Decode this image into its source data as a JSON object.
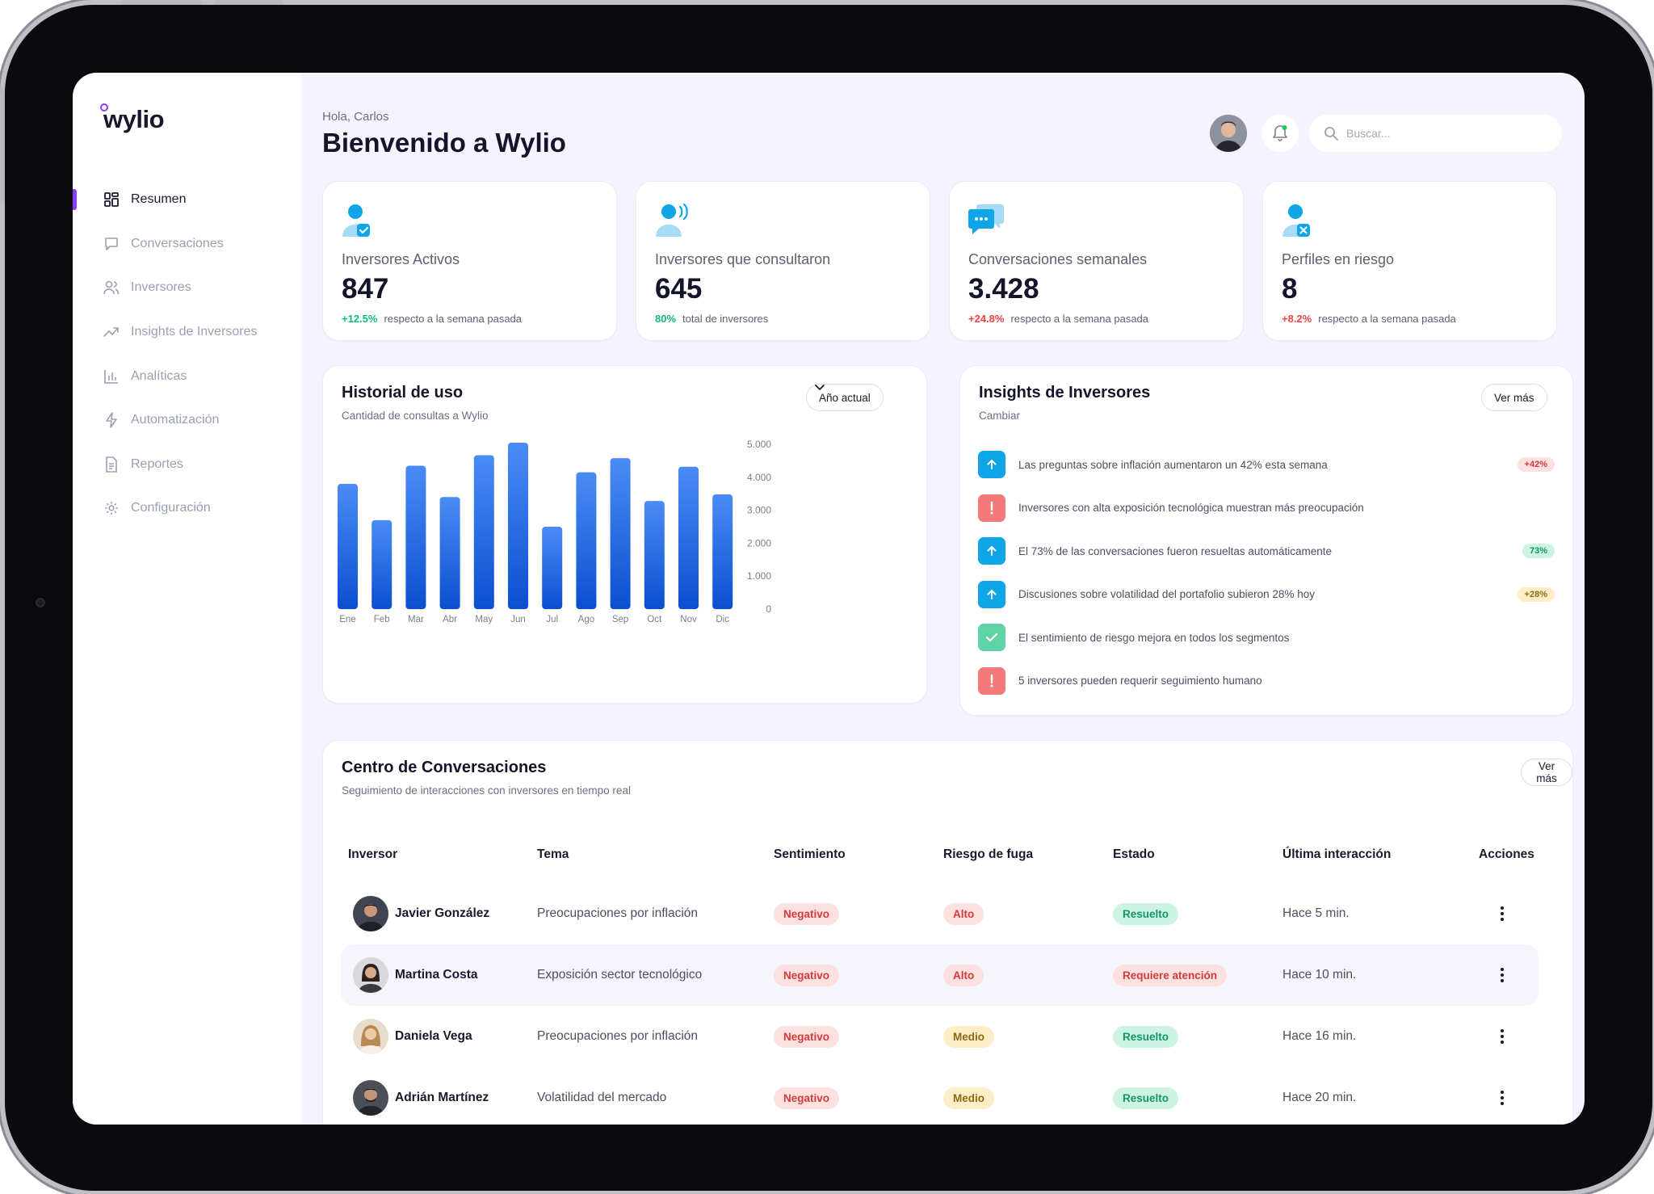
{
  "brand": {
    "name": "wylio",
    "accent": "#8a3ffc"
  },
  "sidebar": {
    "items": [
      {
        "label": "Resumen",
        "icon": "grid-icon",
        "active": true
      },
      {
        "label": "Conversaciones",
        "icon": "chat-icon"
      },
      {
        "label": "Inversores",
        "icon": "users-icon"
      },
      {
        "label": "Insights de Inversores",
        "icon": "trend-icon"
      },
      {
        "label": "Analíticas",
        "icon": "bar-chart-icon"
      },
      {
        "label": "Automatización",
        "icon": "bolt-icon"
      },
      {
        "label": "Reportes",
        "icon": "document-icon"
      },
      {
        "label": "Configuración",
        "icon": "gear-icon"
      }
    ]
  },
  "header": {
    "greeting": "Hola, Carlos",
    "title": "Bienvenido a Wylio",
    "search_placeholder": "Buscar..."
  },
  "stats": [
    {
      "label": "Inversores Activos",
      "value": "847",
      "pct": "+12.5%",
      "pct_type": "pos",
      "note": "respecto a la semana pasada",
      "icon": "user-check-icon"
    },
    {
      "label": "Inversores que consultaron",
      "value": "645",
      "pct": "80%",
      "pct_type": "pos",
      "note": "total de inversores",
      "icon": "user-voice-icon"
    },
    {
      "label": "Conversaciones semanales",
      "value": "3.428",
      "pct": "+24.8%",
      "pct_type": "neg",
      "note": "respecto a la semana pasada",
      "icon": "chat-bubbles-icon"
    },
    {
      "label": "Perfiles en riesgo",
      "value": "8",
      "pct": "+8.2%",
      "pct_type": "neg",
      "note": "respecto a la semana pasada",
      "icon": "user-x-icon"
    }
  ],
  "usage": {
    "title": "Historial de uso",
    "subtitle": "Cantidad de consultas a Wylio",
    "filter": "Año actual"
  },
  "chart_data": {
    "type": "bar",
    "categories": [
      "Ene",
      "Feb",
      "Mar",
      "Abr",
      "May",
      "Jun",
      "Jul",
      "Ago",
      "Sep",
      "Oct",
      "Nov",
      "Dic"
    ],
    "values": [
      3800,
      2700,
      4350,
      3400,
      4670,
      5050,
      2500,
      4150,
      4580,
      3280,
      4320,
      3480
    ],
    "yticks": [
      "5.000",
      "4.000",
      "3.000",
      "2.000",
      "1.000",
      "0"
    ],
    "ylim": [
      0,
      5000
    ],
    "colors": {
      "top": "#4a8cf5",
      "bottom": "#0b4fd1"
    }
  },
  "insights": {
    "title": "Insights de Inversores",
    "subtitle": "Cambiar",
    "more": "Ver más",
    "items": [
      {
        "text": "Las preguntas sobre inflación aumentaron un 42% esta semana",
        "type": "up",
        "badge": "+42%",
        "badge_type": "red"
      },
      {
        "text": "Inversores con alta exposición tecnológica muestran más preocupación",
        "type": "alert",
        "badge": "",
        "badge_type": ""
      },
      {
        "text": "El 73% de las conversaciones fueron resueltas automáticamente",
        "type": "up",
        "badge": "73%",
        "badge_type": "green"
      },
      {
        "text": "Discusiones sobre volatilidad del portafolio subieron 28% hoy",
        "type": "up",
        "badge": "+28%",
        "badge_type": "yellow"
      },
      {
        "text": "El sentimiento de riesgo mejora en todos los segmentos",
        "type": "check",
        "badge": "",
        "badge_type": ""
      },
      {
        "text": "5 inversores pueden requerir seguimiento humano",
        "type": "alert",
        "badge": "",
        "badge_type": ""
      }
    ]
  },
  "conversations": {
    "title": "Centro de Conversaciones",
    "subtitle": "Seguimiento de interacciones con inversores en tiempo real",
    "more": "Ver más",
    "columns": [
      "Inversor",
      "Tema",
      "Sentimiento",
      "Riesgo de fuga",
      "Estado",
      "Última interacción",
      "Acciones"
    ],
    "rows": [
      {
        "name": "Javier González",
        "topic": "Preocupaciones por inflación",
        "sentiment": "Negativo",
        "risk": "Alto",
        "status": "Resuelto",
        "last": "Hace 5 min."
      },
      {
        "name": "Martina Costa",
        "topic": "Exposición sector tecnológico",
        "sentiment": "Negativo",
        "risk": "Alto",
        "status": "Requiere atención",
        "last": "Hace 10 min."
      },
      {
        "name": "Daniela Vega",
        "topic": "Preocupaciones por inflación",
        "sentiment": "Negativo",
        "risk": "Medio",
        "status": "Resuelto",
        "last": "Hace 16 min."
      },
      {
        "name": "Adrián Martínez",
        "topic": "Volatilidad del mercado",
        "sentiment": "Negativo",
        "risk": "Medio",
        "status": "Resuelto",
        "last": "Hace 20 min."
      }
    ]
  }
}
